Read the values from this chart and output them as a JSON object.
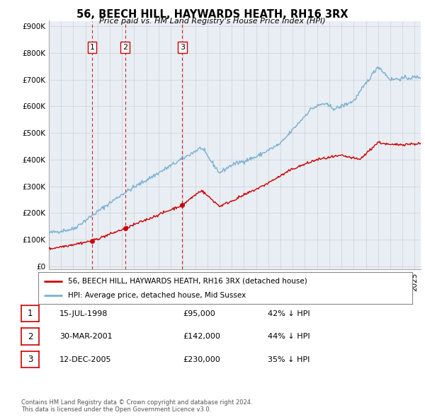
{
  "title": "56, BEECH HILL, HAYWARDS HEATH, RH16 3RX",
  "subtitle": "Price paid vs. HM Land Registry's House Price Index (HPI)",
  "ylim": [
    0,
    900000
  ],
  "xlim_start": 1995.0,
  "xlim_end": 2025.5,
  "sales": [
    {
      "date_num": 1998.54,
      "price": 95000,
      "label": "1"
    },
    {
      "date_num": 2001.25,
      "price": 142000,
      "label": "2"
    },
    {
      "date_num": 2005.95,
      "price": 230000,
      "label": "3"
    }
  ],
  "sale_color": "#cc0000",
  "hpi_color": "#7ab0d4",
  "vline_color": "#cc0000",
  "grid_color": "#d0d0d0",
  "background_color": "#ffffff",
  "chart_bg": "#e8eef4",
  "legend_label_red": "56, BEECH HILL, HAYWARDS HEATH, RH16 3RX (detached house)",
  "legend_label_blue": "HPI: Average price, detached house, Mid Sussex",
  "table_rows": [
    {
      "num": "1",
      "date": "15-JUL-1998",
      "price": "£95,000",
      "change": "42% ↓ HPI"
    },
    {
      "num": "2",
      "date": "30-MAR-2001",
      "price": "£142,000",
      "change": "44% ↓ HPI"
    },
    {
      "num": "3",
      "date": "12-DEC-2005",
      "price": "£230,000",
      "change": "35% ↓ HPI"
    }
  ],
  "footnote": "Contains HM Land Registry data © Crown copyright and database right 2024.\nThis data is licensed under the Open Government Licence v3.0."
}
